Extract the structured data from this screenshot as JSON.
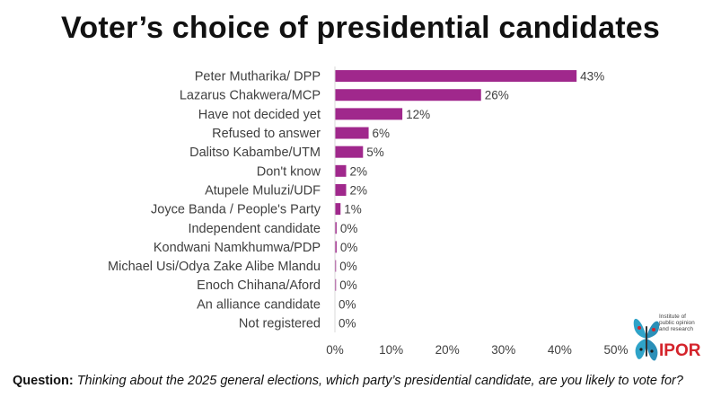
{
  "title": "Voter’s choice of presidential candidates",
  "question_label": "Question:",
  "question_text": "Thinking about the 2025 general elections, which party’s presidential candidate, are you likely to vote for?",
  "logo": {
    "text_lines": [
      "Institute of",
      "public opinion",
      "and research"
    ],
    "brand": "IPOR"
  },
  "colors": {
    "bar": "#a0288c",
    "axis": "#d9d9d9"
  },
  "chart_data": {
    "type": "bar",
    "orientation": "horizontal",
    "categories": [
      "Peter Mutharika/ DPP",
      "Lazarus Chakwera/MCP",
      "Have not decided yet",
      "Refused to answer",
      "Dalitso Kabambe/UTM",
      "Don't know",
      "Atupele Muluzi/UDF",
      "Joyce Banda / People's Party",
      "Independent candidate",
      "Kondwani Namkhumwa/PDP",
      "Michael Usi/Odya Zake Alibe Mlandu",
      "Enoch Chihana/Aford",
      "An alliance candidate",
      "Not registered"
    ],
    "values": [
      43,
      26,
      12,
      6,
      5,
      2,
      2,
      1,
      0.3,
      0.3,
      0.2,
      0.2,
      0,
      0
    ],
    "data_labels": [
      "43%",
      "26%",
      "12%",
      "6%",
      "5%",
      "2%",
      "2%",
      "1%",
      "0%",
      "0%",
      "0%",
      "0%",
      "0%",
      "0%"
    ],
    "xlim": [
      0,
      50
    ],
    "xticks": [
      0,
      10,
      20,
      30,
      40,
      50
    ],
    "xtick_labels": [
      "0%",
      "10%",
      "20%",
      "30%",
      "40%",
      "50%"
    ],
    "grid": false,
    "legend": "none"
  }
}
